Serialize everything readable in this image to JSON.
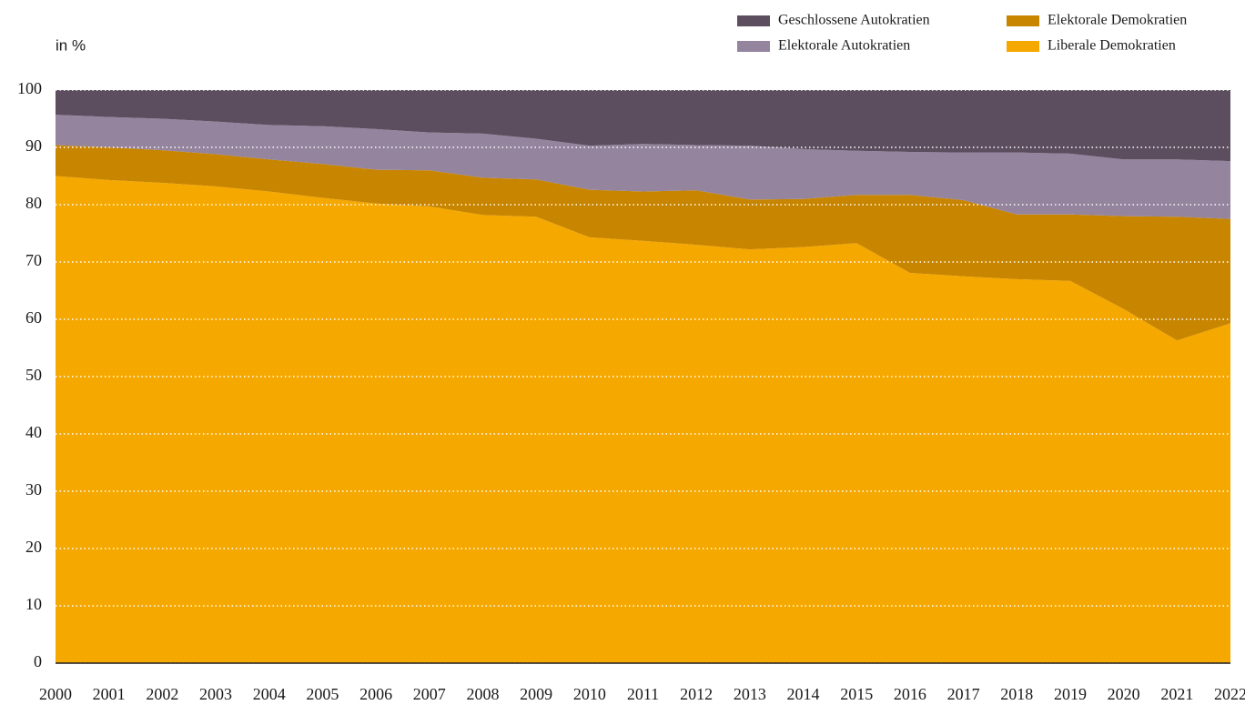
{
  "chart_data": {
    "type": "stacked-area",
    "y_label": "in %",
    "categories": [
      "2000",
      "2001",
      "2002",
      "2003",
      "2004",
      "2005",
      "2006",
      "2007",
      "2008",
      "2009",
      "2010",
      "2011",
      "2012",
      "2013",
      "2014",
      "2015",
      "2016",
      "2017",
      "2018",
      "2019",
      "2020",
      "2021",
      "2022"
    ],
    "series": [
      {
        "name": "Liberale Demokratien",
        "color": "#f5a800",
        "values": [
          85,
          84.3,
          83.8,
          83.2,
          82.3,
          81.2,
          80.2,
          79.7,
          78.2,
          77.9,
          74.3,
          73.7,
          73,
          72.2,
          72.6,
          73.3,
          68.1,
          67.5,
          67,
          66.7,
          61.8,
          56.3,
          59.3
        ]
      },
      {
        "name": "Elektorale Demokratien",
        "color": "#c88500",
        "values": [
          5.4,
          5.7,
          5.7,
          5.6,
          5.6,
          5.9,
          5.9,
          6.3,
          6.5,
          6.5,
          8.3,
          8.6,
          9.5,
          8.7,
          8.4,
          8.4,
          13.6,
          13.3,
          11.3,
          11.6,
          16.2,
          21.6,
          18.2
        ]
      },
      {
        "name": "Elektorale Autokratien",
        "color": "#94849e",
        "values": [
          5.3,
          5.3,
          5.5,
          5.7,
          6.0,
          6.6,
          7.1,
          6.6,
          7.7,
          7.1,
          7.7,
          8.3,
          7.9,
          9.4,
          8.7,
          7.7,
          7.5,
          8.3,
          10.8,
          10.6,
          9.9,
          10.0,
          10.1
        ]
      },
      {
        "name": "Geschlossene Autokratien",
        "color": "#5c4e5f",
        "values": [
          4.3,
          4.7,
          5.0,
          5.5,
          6.1,
          6.3,
          6.8,
          7.4,
          7.6,
          8.5,
          9.7,
          9.4,
          9.6,
          9.7,
          10.3,
          10.6,
          10.8,
          10.9,
          10.9,
          11.1,
          12.1,
          12.1,
          12.4
        ]
      }
    ],
    "ylim": [
      0,
      100
    ],
    "yticks": [
      0,
      10,
      20,
      30,
      40,
      50,
      60,
      70,
      80,
      90,
      100
    ],
    "grid": true
  }
}
